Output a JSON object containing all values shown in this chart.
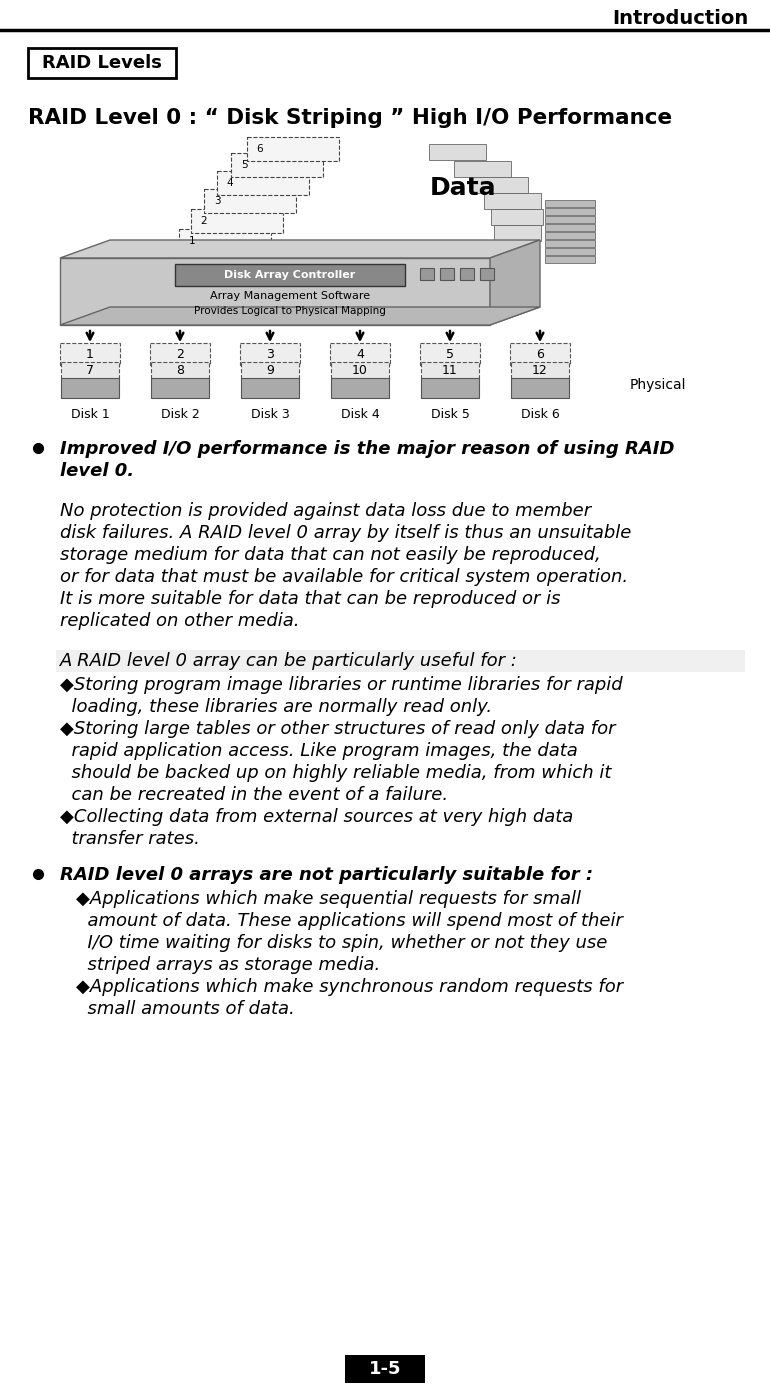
{
  "header_text": "Introduction",
  "box_label": "RAID Levels",
  "title": "RAID Level 0 : “ Disk Striping ” High I/O Performance",
  "bullet1_line1": "Improved I/O performance is the major reason of using RAID",
  "bullet1_line2": "level 0.",
  "para1_lines": [
    "No protection is provided against data loss due to member",
    "disk failures. A RAID level 0 array by itself is thus an unsuitable",
    "storage medium for data that can not easily be reproduced,",
    "or for data that must be available for critical system operation.",
    "It is more suitable for data that can be reproduced or is",
    "replicated on other media."
  ],
  "subhead": "A RAID level 0 array can be particularly useful for :",
  "sub1_lines": [
    "◆Storing program image libraries or runtime libraries for rapid",
    "  loading, these libraries are normally read only."
  ],
  "sub2_lines": [
    "◆Storing large tables or other structures of read only data for",
    "  rapid application access. Like program images, the data",
    "  should be backed up on highly reliable media, from which it",
    "  can be recreated in the event of a failure."
  ],
  "sub3_lines": [
    "◆Collecting data from external sources at very high data",
    "  transfer rates."
  ],
  "bullet2_line": "RAID level 0 arrays are not particularly suitable for :",
  "sub4_lines": [
    "◆Applications which make sequential requests for small",
    "  amount of data. These applications will spend most of their",
    "  I/O time waiting for disks to spin, whether or not they use",
    "  striped arrays as storage media."
  ],
  "sub5_lines": [
    "◆Applications which make synchronous random requests for",
    "  small amounts of data."
  ],
  "page_num": "1-5",
  "disk_top_labels": [
    "1",
    "2",
    "3",
    "4",
    "5",
    "6"
  ],
  "disk_bot_labels": [
    "7",
    "8",
    "9",
    "10",
    "11",
    "12"
  ],
  "disk_names": [
    "Disk 1",
    "Disk 2",
    "Disk 3",
    "Disk 4",
    "Disk 5",
    "Disk 6"
  ],
  "bg_color": "#ffffff",
  "text_color": "#000000"
}
